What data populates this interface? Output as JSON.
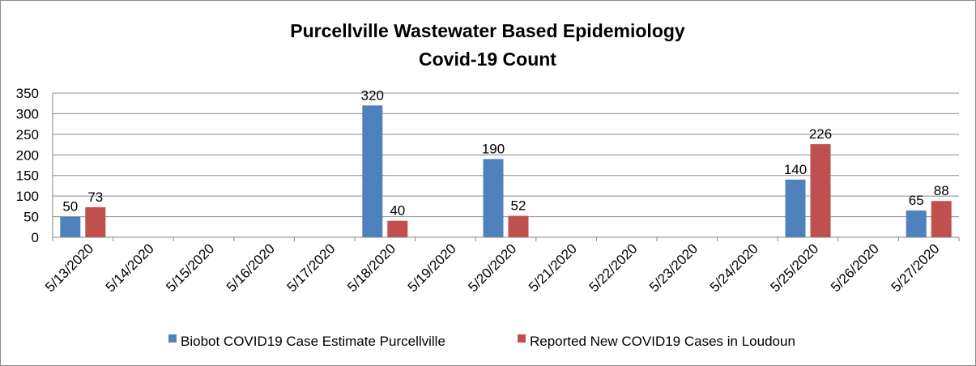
{
  "chart_data": {
    "type": "bar",
    "title": "Purcellville Wastewater Based Epidemiology",
    "subtitle": "Covid-19  Count",
    "xlabel": "",
    "ylabel": "",
    "ylim": [
      0,
      350
    ],
    "yticks": [
      0,
      50,
      100,
      150,
      200,
      250,
      300,
      350
    ],
    "grid": true,
    "legend_position": "bottom",
    "categories": [
      "5/13/2020",
      "5/14/2020",
      "5/15/2020",
      "5/16/2020",
      "5/17/2020",
      "5/18/2020",
      "5/19/2020",
      "5/20/2020",
      "5/21/2020",
      "5/22/2020",
      "5/23/2020",
      "5/24/2020",
      "5/25/2020",
      "5/26/2020",
      "5/27/2020"
    ],
    "series": [
      {
        "name": "Biobot COVID19 Case Estimate Purcellville",
        "color": "#4f81bd",
        "values": [
          50,
          null,
          null,
          null,
          null,
          320,
          null,
          190,
          null,
          null,
          null,
          null,
          140,
          null,
          65
        ]
      },
      {
        "name": "Reported New COVID19 Cases in Loudoun",
        "color": "#c0504d",
        "values": [
          73,
          null,
          null,
          null,
          null,
          40,
          null,
          52,
          null,
          null,
          null,
          null,
          226,
          null,
          88
        ]
      }
    ]
  }
}
